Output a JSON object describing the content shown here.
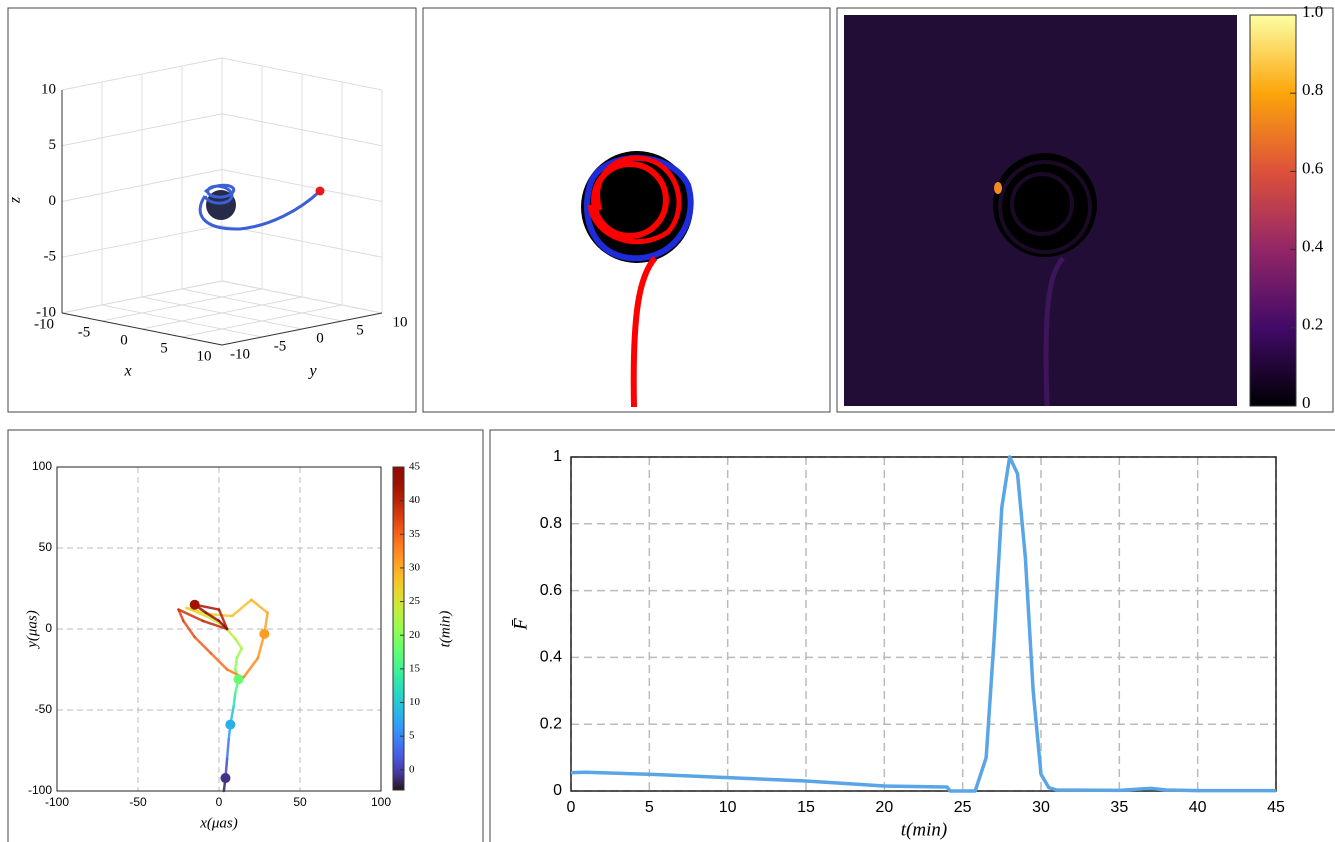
{
  "chart_data": [
    {
      "type": "scatter3d",
      "xlabel": "x",
      "ylabel": "y",
      "zlabel": "z",
      "xlim": [
        -10,
        10
      ],
      "ylim": [
        -10,
        10
      ],
      "zlim": [
        -10,
        10
      ],
      "xticks": [
        -10,
        -5,
        0,
        5,
        10
      ],
      "yticks": [
        -10,
        -5,
        0,
        5,
        10
      ],
      "zticks": [
        -10,
        -5,
        0,
        5,
        10
      ],
      "grid": true
    },
    {
      "type": "image",
      "clim": [
        0,
        1
      ],
      "cticks": [
        0,
        0.2,
        0.4,
        0.6,
        0.8,
        {
          "value": 1,
          "label": "1.0"
        }
      ]
    },
    {
      "type": "colorline",
      "xlabel": "x(μas)",
      "ylabel": "y(μas)",
      "clabel": "t(min)",
      "xlim": [
        -100,
        100
      ],
      "ylim": [
        -100,
        100
      ],
      "xticks": [
        -100,
        -50,
        0,
        50,
        100
      ],
      "yticks": [
        -100,
        -50,
        0,
        50,
        100
      ],
      "grid": true,
      "clim": [
        -3,
        45
      ],
      "cticks": [
        0,
        5,
        10,
        15,
        20,
        25,
        30,
        35,
        40,
        45
      ],
      "x": [
        3,
        4,
        5,
        6,
        7,
        9,
        10,
        12,
        10,
        11,
        14,
        10,
        3,
        -8,
        -20,
        -5,
        8,
        20,
        30,
        28,
        24,
        15,
        5,
        -5,
        -15,
        -22,
        -25,
        -10,
        5,
        0,
        -15,
        -8,
        0,
        5
      ],
      "y": [
        -100,
        -92,
        -80,
        -68,
        -59,
        -48,
        -40,
        -31,
        -25,
        -18,
        -12,
        -6,
        2,
        8,
        13,
        9,
        8,
        18,
        10,
        -3,
        -18,
        -30,
        -25,
        -15,
        -5,
        5,
        12,
        5,
        0,
        12,
        15,
        10,
        5,
        0
      ],
      "t": [
        -3,
        -1,
        2,
        5,
        8,
        11,
        14,
        18,
        20,
        21,
        22,
        23,
        24,
        25,
        26,
        27,
        28,
        29,
        30,
        31,
        32,
        33,
        34,
        35,
        36,
        37,
        38,
        39,
        40,
        41,
        42,
        43,
        44,
        45
      ],
      "points": {
        "x": [
          4,
          7,
          12,
          28,
          -15
        ],
        "y": [
          -92,
          -59,
          -31,
          -3,
          15
        ],
        "t": [
          -1,
          8,
          18,
          31,
          42
        ]
      }
    },
    {
      "type": "line",
      "xlabel": "t(min)",
      "ylabel": "F̄",
      "color": "#5aa5e6",
      "xlim": [
        0,
        45
      ],
      "ylim": [
        0,
        1
      ],
      "xticks": [
        0,
        5,
        10,
        15,
        20,
        25,
        30,
        35,
        40,
        45
      ],
      "yticks": [
        0,
        0.2,
        0.4,
        0.6,
        0.8,
        1
      ],
      "grid": true,
      "x": [
        0,
        1,
        5,
        10,
        15,
        20,
        24,
        24.2,
        25.8,
        26.5,
        27,
        27.5,
        28,
        28.5,
        29,
        29.5,
        30,
        30.5,
        31,
        35,
        36,
        37,
        38,
        40,
        45
      ],
      "values": [
        0.055,
        0.056,
        0.05,
        0.04,
        0.03,
        0.015,
        0.012,
        0,
        0,
        0.1,
        0.45,
        0.85,
        1,
        0.95,
        0.7,
        0.3,
        0.05,
        0.01,
        0.003,
        0.002,
        0.005,
        0.008,
        0.003,
        0.001,
        0.001
      ]
    }
  ]
}
